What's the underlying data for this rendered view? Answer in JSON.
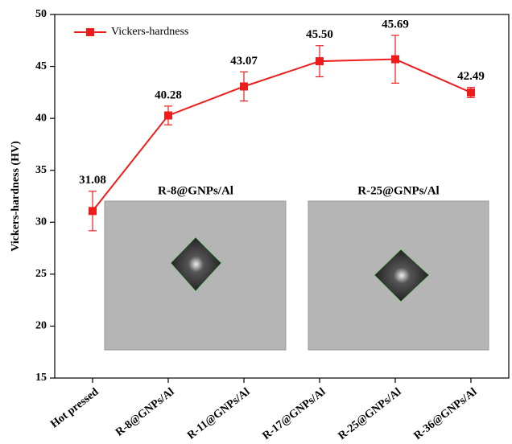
{
  "chart_data": {
    "type": "line",
    "y_label": "Vickers-hardness (HV)",
    "categories": [
      "Hot pressed",
      "R-8@GNPs/Al",
      "R-11@GNPs/Al",
      "R-17@GNPs/Al",
      "R-25@GNPs/Al",
      "R-36@GNPs/Al"
    ],
    "series": [
      {
        "name": "Vickers-hardness",
        "color": "#ee1c1c",
        "values": [
          31.08,
          40.28,
          43.07,
          45.5,
          45.69,
          42.49
        ],
        "value_labels": [
          "31.08",
          "40.28",
          "43.07",
          "45.50",
          "45.69",
          "42.49"
        ],
        "errors": [
          1.9,
          0.9,
          1.4,
          1.5,
          2.3,
          0.5
        ]
      }
    ],
    "ylim": [
      15,
      50
    ],
    "yticks": [
      15,
      20,
      25,
      30,
      35,
      40,
      45,
      50
    ],
    "legend": "upper left",
    "annotations": [
      "R-8@GNPs/Al",
      "R-25@GNPs/Al"
    ]
  }
}
